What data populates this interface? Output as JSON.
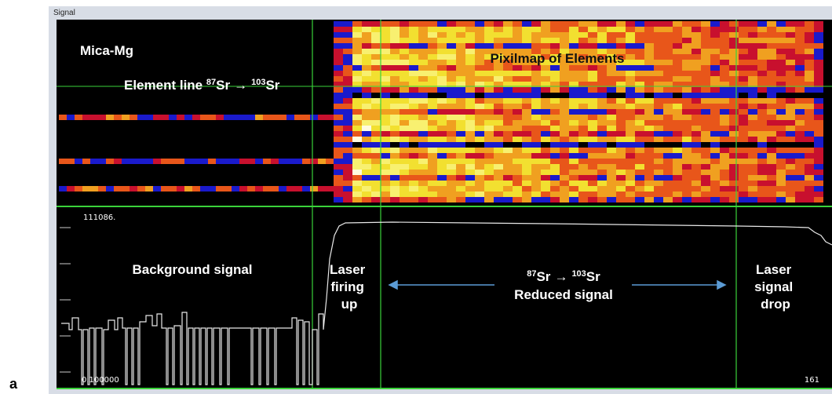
{
  "window": {
    "title": "Signal"
  },
  "panel_label": "a",
  "heatmap": {
    "sample": "Mica-Mg",
    "element_line": {
      "text": "Element line ",
      "mass_from": "87",
      "symbol_from": "Sr",
      "arrow": "→",
      "mass_to": "103",
      "symbol_to": "Sr"
    },
    "title": "Pixilmap of Elements"
  },
  "signal": {
    "y_max_label": "111086.",
    "y_min_label": "0.100000",
    "x_end_label": "161",
    "annotations": {
      "background": "Background signal",
      "firing": [
        "Laser",
        "firing",
        "up"
      ],
      "reaction": {
        "mass_from": "87",
        "symbol_from": "Sr",
        "arrow": "→",
        "mass_to": "103",
        "symbol_to": "Sr",
        "caption": "Reduced signal"
      },
      "drop": [
        "Laser",
        "signal",
        "drop"
      ]
    }
  }
}
